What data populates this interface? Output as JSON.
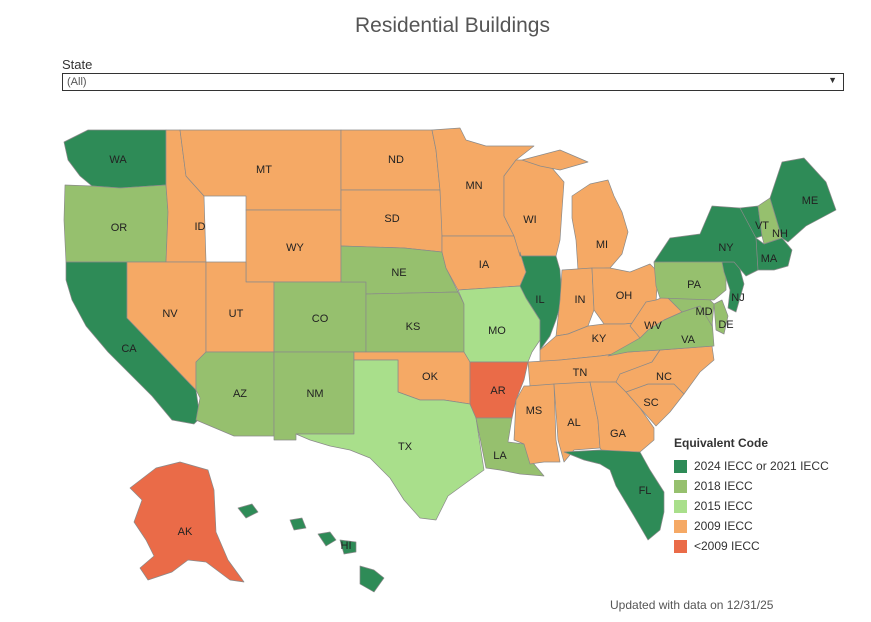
{
  "title": "Residential Buildings",
  "filter": {
    "label": "State",
    "value": "(All)"
  },
  "legend": {
    "title": "Equivalent Code",
    "items": [
      {
        "code": "2024",
        "label": "2024 IECC or 2021 IECC",
        "color": "#2e8b57"
      },
      {
        "code": "2018",
        "label": "2018 IECC",
        "color": "#96c06e"
      },
      {
        "code": "2015",
        "label": "2015 IECC",
        "color": "#a9df8b"
      },
      {
        "code": "2009",
        "label": "2009 IECC",
        "color": "#f5a965"
      },
      {
        "code": "pre2009",
        "label": "<2009 IECC",
        "color": "#ea6b48"
      }
    ]
  },
  "states": [
    {
      "abbr": "WA",
      "code": "2024"
    },
    {
      "abbr": "OR",
      "code": "2018"
    },
    {
      "abbr": "CA",
      "code": "2024"
    },
    {
      "abbr": "ID",
      "code": "2009"
    },
    {
      "abbr": "NV",
      "code": "2009"
    },
    {
      "abbr": "MT",
      "code": "2009"
    },
    {
      "abbr": "WY",
      "code": "2009"
    },
    {
      "abbr": "UT",
      "code": "2009"
    },
    {
      "abbr": "AZ",
      "code": "2018"
    },
    {
      "abbr": "CO",
      "code": "2018"
    },
    {
      "abbr": "NM",
      "code": "2018"
    },
    {
      "abbr": "ND",
      "code": "2009"
    },
    {
      "abbr": "SD",
      "code": "2009"
    },
    {
      "abbr": "NE",
      "code": "2018"
    },
    {
      "abbr": "KS",
      "code": "2018"
    },
    {
      "abbr": "OK",
      "code": "2009"
    },
    {
      "abbr": "TX",
      "code": "2015"
    },
    {
      "abbr": "MN",
      "code": "2009"
    },
    {
      "abbr": "IA",
      "code": "2009"
    },
    {
      "abbr": "MO",
      "code": "2015"
    },
    {
      "abbr": "AR",
      "code": "pre2009"
    },
    {
      "abbr": "LA",
      "code": "2018"
    },
    {
      "abbr": "WI",
      "code": "2009"
    },
    {
      "abbr": "IL",
      "code": "2024"
    },
    {
      "abbr": "MI",
      "code": "2009"
    },
    {
      "abbr": "IN",
      "code": "2009"
    },
    {
      "abbr": "OH",
      "code": "2009"
    },
    {
      "abbr": "KY",
      "code": "2009"
    },
    {
      "abbr": "TN",
      "code": "2009"
    },
    {
      "abbr": "MS",
      "code": "2009"
    },
    {
      "abbr": "AL",
      "code": "2009"
    },
    {
      "abbr": "GA",
      "code": "2009"
    },
    {
      "abbr": "FL",
      "code": "2024"
    },
    {
      "abbr": "SC",
      "code": "2009"
    },
    {
      "abbr": "NC",
      "code": "2009"
    },
    {
      "abbr": "VA",
      "code": "2018"
    },
    {
      "abbr": "WV",
      "code": "2009"
    },
    {
      "abbr": "MD",
      "code": "2018"
    },
    {
      "abbr": "DE",
      "code": "2018"
    },
    {
      "abbr": "PA",
      "code": "2018"
    },
    {
      "abbr": "NJ",
      "code": "2024"
    },
    {
      "abbr": "NY",
      "code": "2024"
    },
    {
      "abbr": "VT",
      "code": "2024"
    },
    {
      "abbr": "NH",
      "code": "2018"
    },
    {
      "abbr": "MA",
      "code": "2024"
    },
    {
      "abbr": "ME",
      "code": "2024"
    },
    {
      "abbr": "AK",
      "code": "pre2009"
    },
    {
      "abbr": "HI",
      "code": "2024"
    }
  ],
  "footer": "Updated with data on 12/31/25"
}
